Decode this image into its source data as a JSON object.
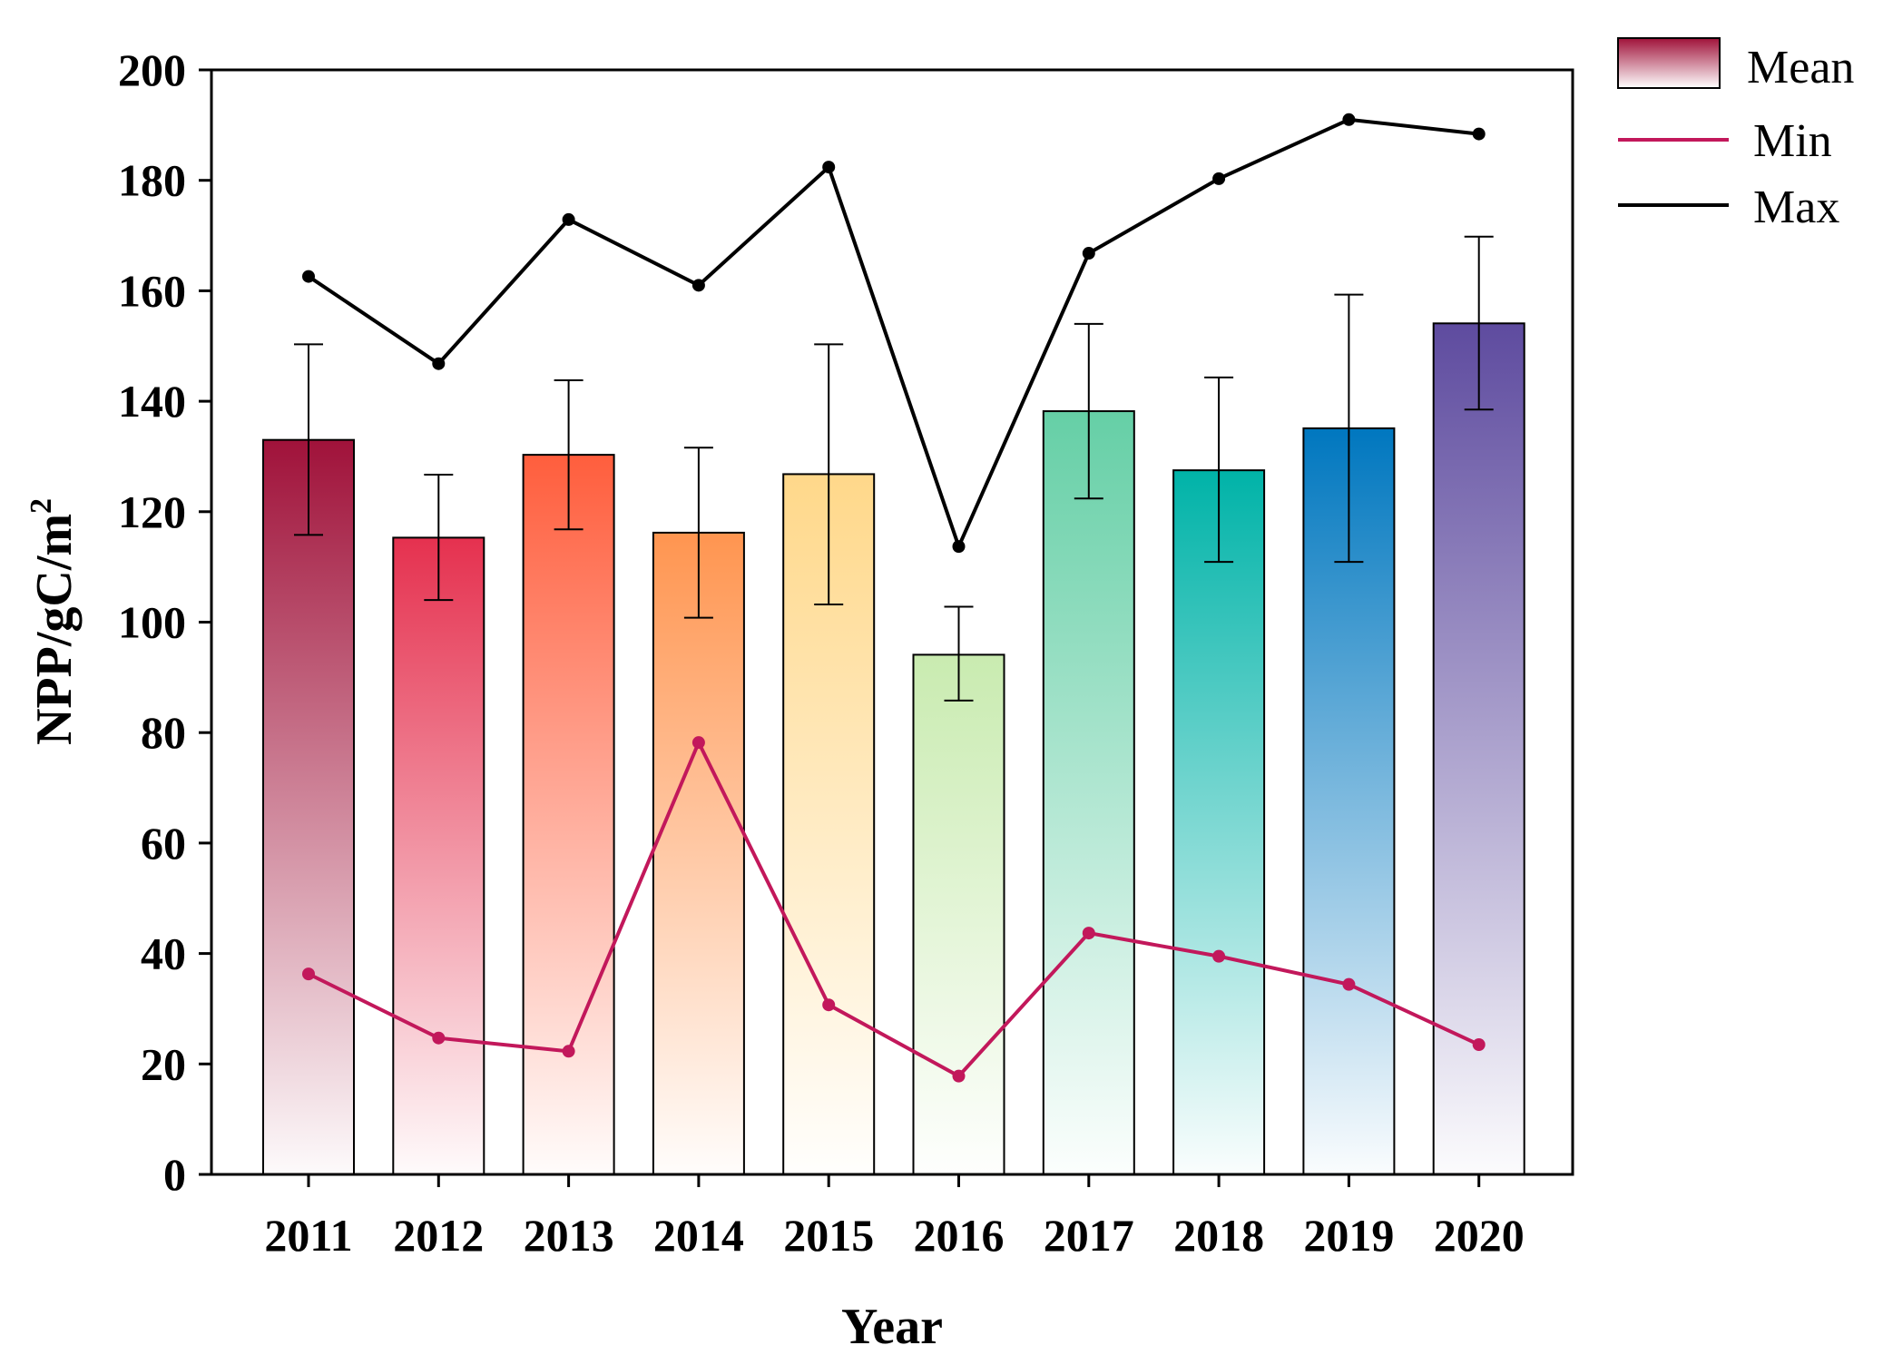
{
  "chart_data": {
    "type": "bar",
    "title": "",
    "xlabel": "Year",
    "ylabel_main": "NPP/gC/m",
    "ylabel_sup": "2",
    "ylim": [
      0,
      200
    ],
    "yticks": [
      0,
      20,
      40,
      60,
      80,
      100,
      120,
      140,
      160,
      180,
      200
    ],
    "categories": [
      "2011",
      "2012",
      "2013",
      "2014",
      "2015",
      "2016",
      "2017",
      "2018",
      "2019",
      "2020"
    ],
    "series": [
      {
        "name": "Mean",
        "kind": "bar",
        "values": [
          133,
          115.3,
          130.3,
          116.2,
          126.8,
          94.1,
          138.2,
          127.5,
          135.1,
          154.1
        ],
        "error_low": [
          115.8,
          104,
          116.8,
          100.8,
          103.2,
          85.8,
          122.4,
          110.9,
          110.9,
          138.5
        ],
        "error_high": [
          150.3,
          126.7,
          143.8,
          131.6,
          150.3,
          102.8,
          154,
          144.3,
          159.3,
          169.8
        ],
        "colors": [
          "#a0123a",
          "#e5314f",
          "#ff5e3d",
          "#ff9550",
          "#ffd88a",
          "#c9ebb0",
          "#65cfa6",
          "#00b3a8",
          "#0077bf",
          "#5e4b9f"
        ]
      },
      {
        "name": "Min",
        "kind": "line",
        "color": "#c2185b",
        "values": [
          36.3,
          24.7,
          22.3,
          78.2,
          30.7,
          17.8,
          43.7,
          39.5,
          34.4,
          23.5
        ]
      },
      {
        "name": "Max",
        "kind": "line",
        "color": "#000000",
        "values": [
          162.6,
          146.8,
          172.9,
          161,
          182.4,
          113.7,
          166.8,
          180.3,
          191,
          188.4
        ]
      }
    ],
    "legend": [
      "Mean",
      "Min",
      "Max"
    ],
    "legend_position": "outside-top-right",
    "grid": false
  }
}
